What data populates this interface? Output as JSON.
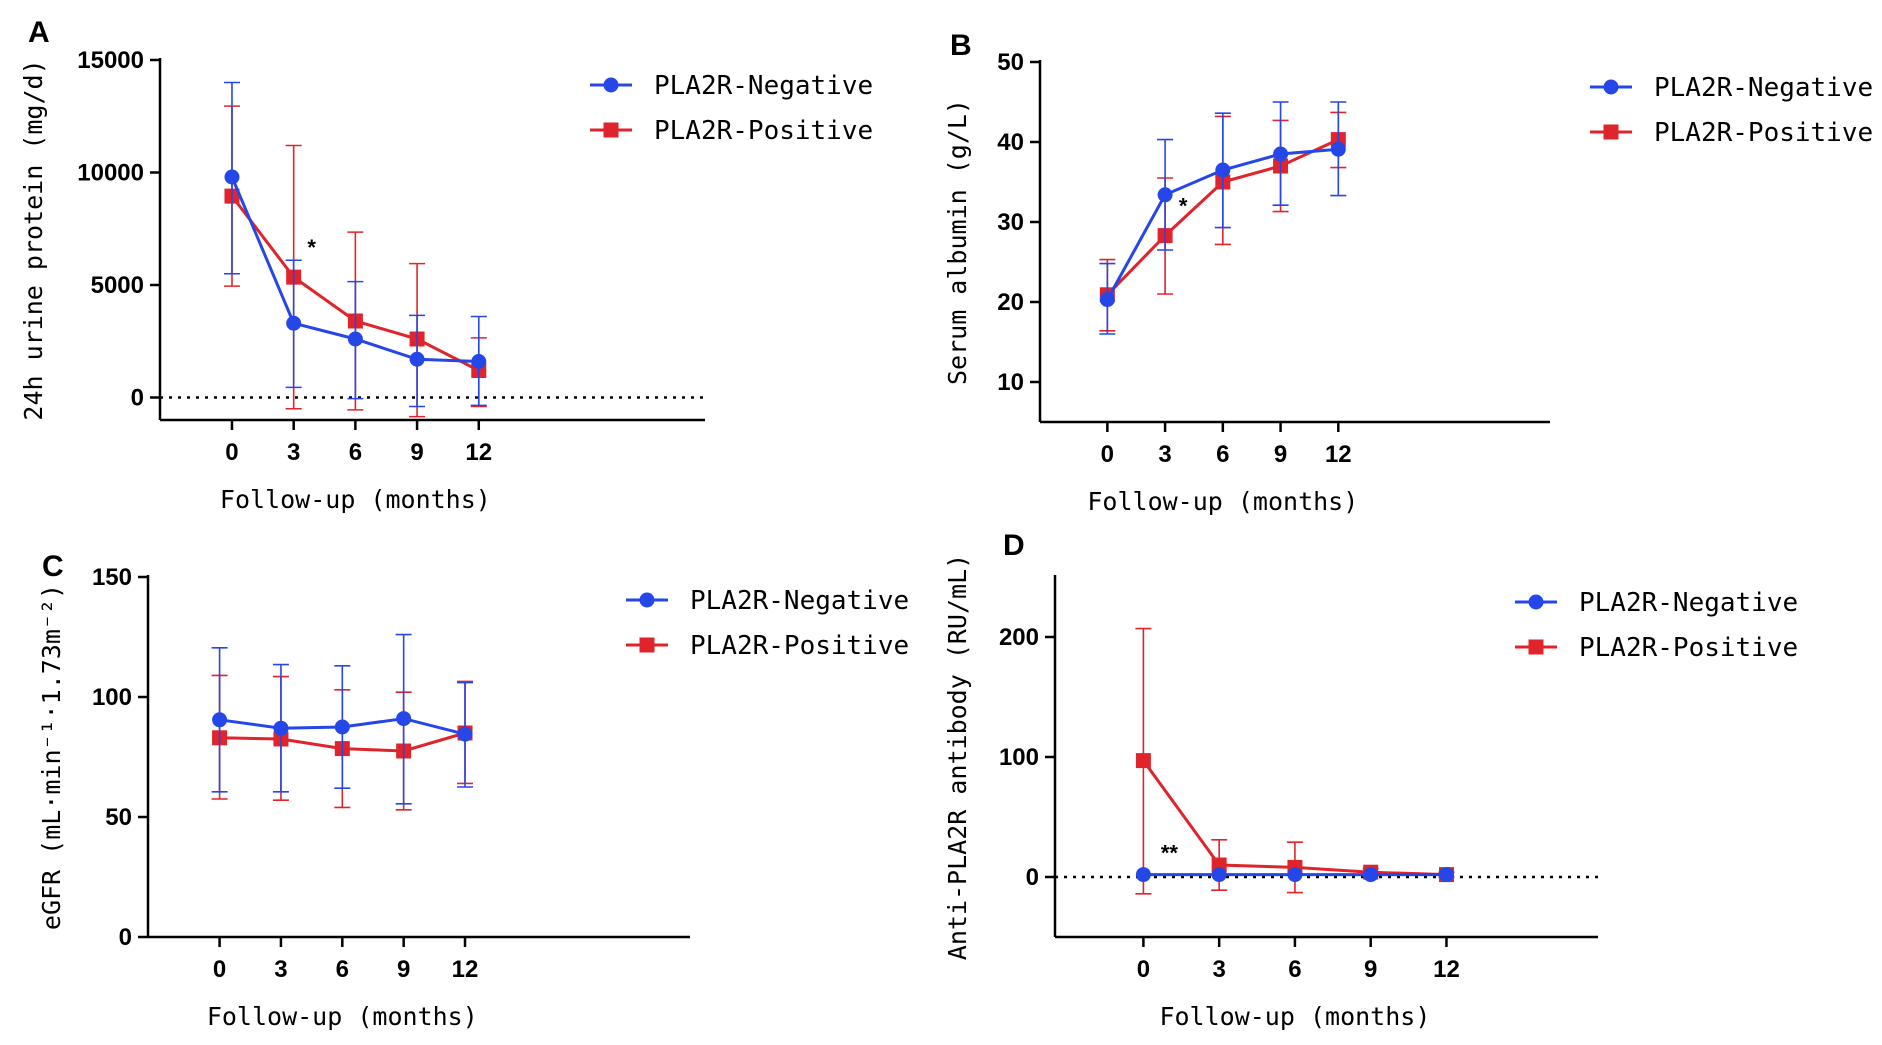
{
  "colors": {
    "negative": "#2547e8",
    "positive": "#e0242b"
  },
  "chart_data": [
    {
      "panel": "A",
      "type": "line",
      "xlabel": "Follow-up (months)",
      "ylabel": "24h urine protein (mg/d)",
      "x": [
        0,
        3,
        6,
        9,
        12
      ],
      "xticks": [
        "0",
        "3",
        "6",
        "9",
        "12"
      ],
      "xlim": [
        -3.5,
        23
      ],
      "ylim": [
        -1000,
        15000
      ],
      "yticks": [
        0,
        5000,
        10000,
        15000
      ],
      "ytick_labels": [
        "0",
        "5000",
        "10000",
        "15000"
      ],
      "zero_line": true,
      "legend_position": "top-right",
      "series": [
        {
          "name": "PLA2R-Negative",
          "marker": "circle",
          "values": [
            9800,
            3300,
            2600,
            1700,
            1600
          ],
          "err_low": [
            5500,
            450,
            -50,
            -400,
            -350
          ],
          "err_high": [
            14000,
            6100,
            5150,
            3650,
            3600
          ]
        },
        {
          "name": "PLA2R-Positive",
          "marker": "square",
          "values": [
            8950,
            5350,
            3400,
            2600,
            1200
          ],
          "err_low": [
            4950,
            -500,
            -550,
            -850,
            -400
          ],
          "err_high": [
            12950,
            11200,
            7350,
            5950,
            2650
          ]
        }
      ],
      "annotations": [
        {
          "text": "*",
          "x": 3
        }
      ]
    },
    {
      "panel": "B",
      "type": "line",
      "xlabel": "Follow-up (months)",
      "ylabel": "Serum albumin (g/L)",
      "x": [
        0,
        3,
        6,
        9,
        12
      ],
      "xticks": [
        "0",
        "3",
        "6",
        "9",
        "12"
      ],
      "xlim": [
        -3.5,
        23
      ],
      "ylim": [
        5,
        50
      ],
      "yticks": [
        10,
        20,
        30,
        40,
        50
      ],
      "ytick_labels": [
        "10",
        "20",
        "30",
        "40",
        "50"
      ],
      "zero_line": false,
      "legend_position": "top-right",
      "series": [
        {
          "name": "PLA2R-Negative",
          "marker": "circle",
          "values": [
            20.3,
            33.4,
            36.5,
            38.5,
            39.1
          ],
          "err_low": [
            16.0,
            26.5,
            29.3,
            32.1,
            33.3
          ],
          "err_high": [
            24.8,
            40.3,
            43.6,
            45.0,
            45.0
          ]
        },
        {
          "name": "PLA2R-Positive",
          "marker": "square",
          "values": [
            20.9,
            28.3,
            35.0,
            37.0,
            40.3
          ],
          "err_low": [
            16.4,
            21.0,
            27.2,
            31.3,
            36.8
          ],
          "err_high": [
            25.3,
            35.5,
            43.2,
            42.7,
            43.7
          ]
        }
      ],
      "annotations": [
        {
          "text": "*",
          "x": 3
        }
      ]
    },
    {
      "panel": "C",
      "type": "line",
      "xlabel": "Follow-up (months)",
      "ylabel": "eGFR (mL·min⁻¹·1.73m⁻²)",
      "x": [
        0,
        3,
        6,
        9,
        12
      ],
      "xticks": [
        "0",
        "3",
        "6",
        "9",
        "12"
      ],
      "xlim": [
        -3.5,
        23
      ],
      "ylim": [
        0,
        150
      ],
      "yticks": [
        0,
        50,
        100,
        150
      ],
      "ytick_labels": [
        "0",
        "50",
        "100",
        "150"
      ],
      "zero_line": false,
      "legend_position": "top-right",
      "series": [
        {
          "name": "PLA2R-Negative",
          "marker": "circle",
          "values": [
            90.5,
            87.0,
            87.5,
            91.0,
            84.5
          ],
          "err_low": [
            60.5,
            60.5,
            62.0,
            55.5,
            62.5
          ],
          "err_high": [
            120.5,
            113.5,
            113.0,
            126.0,
            106.0
          ]
        },
        {
          "name": "PLA2R-Positive",
          "marker": "square",
          "values": [
            83.0,
            82.5,
            78.5,
            77.5,
            85.0
          ],
          "err_low": [
            57.5,
            57.0,
            54.0,
            53.0,
            64.0
          ],
          "err_high": [
            109.0,
            108.5,
            103.0,
            102.0,
            106.5
          ]
        }
      ],
      "annotations": []
    },
    {
      "panel": "D",
      "type": "line",
      "xlabel": "Follow-up (months)",
      "ylabel": "Anti-PLA2R antibody (RU/mL)",
      "x": [
        0,
        3,
        6,
        9,
        12
      ],
      "xticks": [
        "0",
        "3",
        "6",
        "9",
        "12"
      ],
      "xlim": [
        -3.5,
        18
      ],
      "ylim": [
        -50,
        250
      ],
      "yticks": [
        0,
        100,
        200
      ],
      "ytick_labels": [
        "0",
        "100",
        "200"
      ],
      "zero_line": true,
      "legend_position": "top-right",
      "series": [
        {
          "name": "PLA2R-Negative",
          "marker": "circle",
          "values": [
            2,
            2,
            2,
            2,
            2
          ],
          "err_low": [
            2,
            2,
            2,
            2,
            2
          ],
          "err_high": [
            2,
            2,
            2,
            2,
            2
          ]
        },
        {
          "name": "PLA2R-Positive",
          "marker": "square",
          "values": [
            97,
            10,
            8,
            4,
            2
          ],
          "err_low": [
            -14,
            -11,
            -13,
            1,
            0
          ],
          "err_high": [
            207,
            31,
            29,
            7,
            4
          ]
        }
      ],
      "annotations": [
        {
          "text": "**",
          "x": 0
        }
      ]
    }
  ]
}
